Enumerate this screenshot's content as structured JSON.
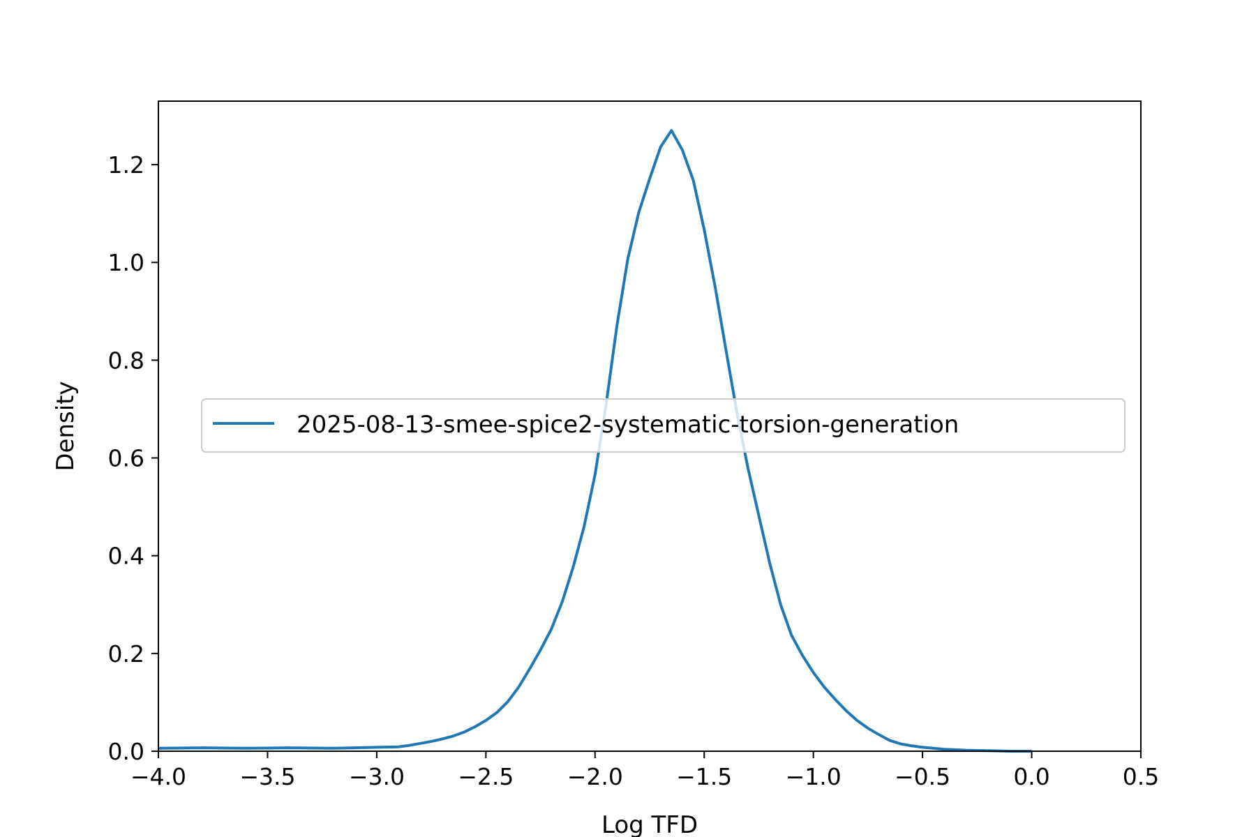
{
  "chart_data": {
    "type": "line",
    "xlabel": "Log TFD",
    "ylabel": "Density",
    "xlim": [
      -4.0,
      0.5
    ],
    "ylim": [
      0.0,
      1.33
    ],
    "xticks": [
      -4.0,
      -3.5,
      -3.0,
      -2.5,
      -2.0,
      -1.5,
      -1.0,
      -0.5,
      0.0,
      0.5
    ],
    "xtick_labels": [
      "−4.0",
      "−3.5",
      "−3.0",
      "−2.5",
      "−2.0",
      "−1.5",
      "−1.0",
      "−0.5",
      "0.0",
      "0.5"
    ],
    "yticks": [
      0.0,
      0.2,
      0.4,
      0.6,
      0.8,
      1.0,
      1.2
    ],
    "ytick_labels": [
      "0.0",
      "0.2",
      "0.4",
      "0.6",
      "0.8",
      "1.0",
      "1.2"
    ],
    "grid": false,
    "legend_position": "center-right",
    "series": [
      {
        "name": "2025-08-13-smee-spice2-systematic-torsion-generation",
        "color": "#1f77b4",
        "x": [
          -4.0,
          -3.8,
          -3.6,
          -3.4,
          -3.2,
          -3.0,
          -2.9,
          -2.85,
          -2.8,
          -2.75,
          -2.7,
          -2.65,
          -2.6,
          -2.55,
          -2.5,
          -2.45,
          -2.4,
          -2.35,
          -2.3,
          -2.25,
          -2.2,
          -2.15,
          -2.1,
          -2.05,
          -2.0,
          -1.95,
          -1.9,
          -1.85,
          -1.8,
          -1.75,
          -1.7,
          -1.65,
          -1.6,
          -1.55,
          -1.5,
          -1.45,
          -1.4,
          -1.35,
          -1.3,
          -1.25,
          -1.2,
          -1.15,
          -1.1,
          -1.05,
          -1.0,
          -0.95,
          -0.9,
          -0.85,
          -0.8,
          -0.75,
          -0.7,
          -0.65,
          -0.6,
          -0.55,
          -0.5,
          -0.45,
          -0.4,
          -0.35,
          -0.3,
          -0.2,
          -0.1,
          0.0
        ],
        "y": [
          0.006,
          0.007,
          0.006,
          0.007,
          0.006,
          0.008,
          0.009,
          0.012,
          0.016,
          0.02,
          0.025,
          0.031,
          0.039,
          0.05,
          0.063,
          0.079,
          0.101,
          0.131,
          0.168,
          0.207,
          0.25,
          0.306,
          0.377,
          0.46,
          0.566,
          0.707,
          0.87,
          1.007,
          1.102,
          1.171,
          1.236,
          1.27,
          1.23,
          1.168,
          1.067,
          0.95,
          0.82,
          0.692,
          0.58,
          0.482,
          0.385,
          0.3,
          0.237,
          0.196,
          0.161,
          0.131,
          0.106,
          0.083,
          0.063,
          0.047,
          0.034,
          0.022,
          0.015,
          0.011,
          0.008,
          0.006,
          0.004,
          0.003,
          0.002,
          0.001,
          0.0,
          0.0
        ]
      }
    ]
  }
}
